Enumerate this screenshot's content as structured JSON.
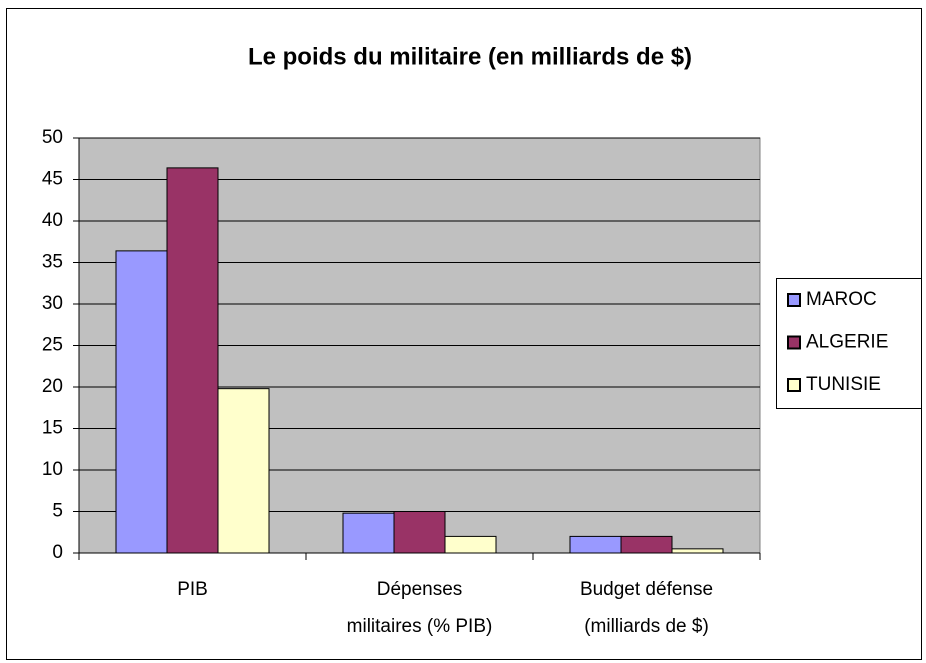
{
  "chart_data": {
    "type": "bar",
    "title": "Le poids du militaire (en milliards de $)",
    "categories": [
      [
        "PIB"
      ],
      [
        "Dépenses",
        "militaires  (% PIB)"
      ],
      [
        "Budget défense",
        "(milliards de $)"
      ]
    ],
    "series": [
      {
        "name": "MAROC",
        "color": "#9999ff",
        "values": [
          36.4,
          4.8,
          2
        ]
      },
      {
        "name": "ALGERIE",
        "color": "#993366",
        "values": [
          46.4,
          5,
          2
        ]
      },
      {
        "name": "TUNISIE",
        "color": "#ffffcc",
        "values": [
          19.8,
          2,
          0.5
        ]
      }
    ],
    "ylim": [
      0,
      50
    ],
    "yticks": [
      0,
      5,
      10,
      15,
      20,
      25,
      30,
      35,
      40,
      45,
      50
    ],
    "grid": true,
    "legend": "right",
    "plot_background": "#c0c0c0"
  }
}
